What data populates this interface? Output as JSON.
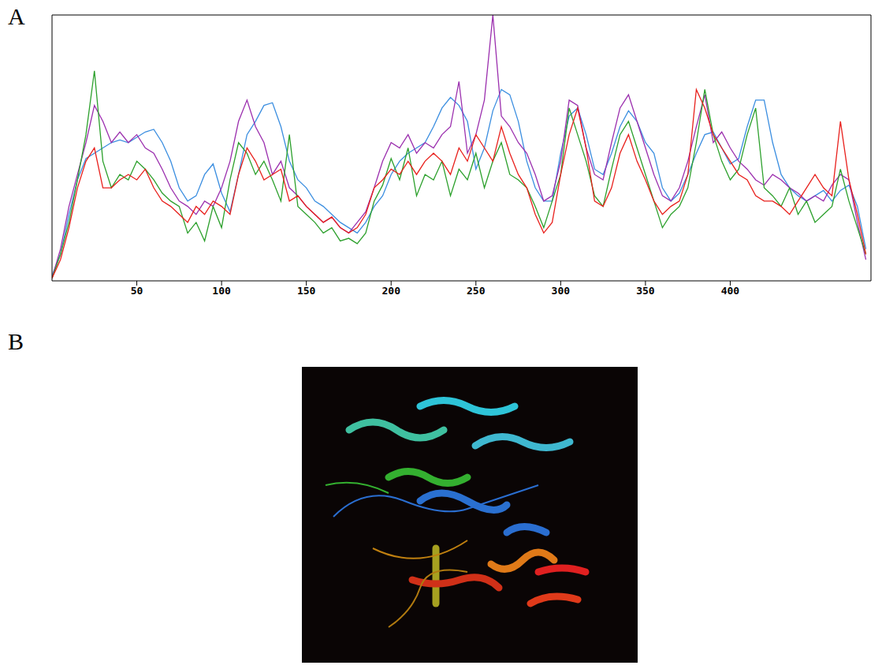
{
  "panel_labels": [
    "A",
    "B"
  ],
  "chart_data": {
    "type": "line",
    "x": [
      0,
      5,
      10,
      15,
      20,
      25,
      30,
      35,
      40,
      45,
      50,
      55,
      60,
      65,
      70,
      75,
      80,
      85,
      90,
      95,
      100,
      105,
      110,
      115,
      120,
      125,
      130,
      135,
      140,
      145,
      150,
      155,
      160,
      165,
      170,
      175,
      180,
      185,
      190,
      195,
      200,
      205,
      210,
      215,
      220,
      225,
      230,
      235,
      240,
      245,
      250,
      255,
      260,
      265,
      270,
      275,
      280,
      285,
      290,
      295,
      300,
      305,
      310,
      315,
      320,
      325,
      330,
      335,
      340,
      345,
      350,
      355,
      360,
      365,
      370,
      375,
      380,
      385,
      390,
      395,
      400,
      405,
      410,
      415,
      420,
      425,
      430,
      435,
      440,
      445,
      450,
      455,
      460,
      465,
      470,
      475,
      480
    ],
    "xlim": [
      0,
      483
    ],
    "xticks": [
      50,
      100,
      150,
      200,
      250,
      300,
      350,
      400
    ],
    "ylim": [
      0,
      100
    ],
    "tick_labels": "x",
    "series": [
      {
        "color": "#3b8ee0",
        "values": [
          2,
          10,
          25,
          38,
          46,
          48,
          50,
          52,
          53,
          52,
          54,
          56,
          57,
          52,
          45,
          35,
          30,
          32,
          40,
          44,
          33,
          26,
          40,
          55,
          60,
          66,
          67,
          58,
          45,
          38,
          35,
          30,
          28,
          25,
          22,
          20,
          18,
          22,
          28,
          32,
          40,
          45,
          48,
          50,
          52,
          58,
          65,
          69,
          66,
          60,
          42,
          50,
          64,
          72,
          70,
          60,
          45,
          35,
          30,
          30,
          48,
          62,
          65,
          55,
          42,
          40,
          48,
          58,
          64,
          60,
          52,
          48,
          35,
          30,
          33,
          40,
          48,
          55,
          56,
          50,
          44,
          46,
          58,
          68,
          68,
          52,
          40,
          35,
          32,
          30,
          32,
          34,
          30,
          34,
          36,
          28,
          12
        ]
      },
      {
        "color": "#9b2fae",
        "values": [
          1,
          12,
          28,
          40,
          52,
          66,
          60,
          52,
          56,
          52,
          55,
          50,
          48,
          42,
          35,
          30,
          28,
          25,
          30,
          28,
          35,
          45,
          60,
          68,
          58,
          52,
          40,
          45,
          35,
          32,
          28,
          25,
          22,
          24,
          20,
          18,
          22,
          26,
          35,
          45,
          52,
          50,
          55,
          48,
          52,
          50,
          55,
          58,
          75,
          48,
          55,
          68,
          100,
          62,
          58,
          52,
          48,
          40,
          30,
          32,
          45,
          68,
          66,
          50,
          40,
          38,
          52,
          65,
          70,
          60,
          50,
          40,
          32,
          30,
          35,
          45,
          58,
          70,
          52,
          56,
          50,
          45,
          42,
          38,
          36,
          40,
          38,
          35,
          33,
          30,
          32,
          30,
          36,
          40,
          38,
          22,
          8
        ]
      },
      {
        "color": "#2ca02c",
        "values": [
          1,
          10,
          22,
          38,
          55,
          79,
          45,
          35,
          40,
          38,
          45,
          42,
          38,
          33,
          30,
          28,
          18,
          22,
          15,
          28,
          20,
          38,
          52,
          48,
          40,
          45,
          38,
          30,
          55,
          28,
          25,
          22,
          18,
          20,
          15,
          16,
          14,
          18,
          30,
          36,
          46,
          38,
          50,
          32,
          40,
          38,
          45,
          32,
          42,
          38,
          48,
          35,
          45,
          52,
          40,
          38,
          35,
          28,
          20,
          30,
          40,
          65,
          55,
          45,
          32,
          28,
          42,
          55,
          60,
          50,
          40,
          30,
          20,
          25,
          28,
          35,
          52,
          72,
          55,
          45,
          38,
          42,
          55,
          65,
          35,
          32,
          28,
          35,
          25,
          30,
          22,
          25,
          28,
          42,
          30,
          20,
          10
        ]
      },
      {
        "color": "#e8201c",
        "values": [
          1,
          8,
          20,
          35,
          45,
          50,
          35,
          35,
          38,
          40,
          38,
          42,
          35,
          30,
          28,
          25,
          22,
          28,
          25,
          30,
          28,
          25,
          40,
          50,
          45,
          38,
          40,
          42,
          30,
          32,
          28,
          25,
          22,
          24,
          20,
          18,
          20,
          25,
          35,
          38,
          42,
          40,
          45,
          40,
          45,
          48,
          45,
          40,
          50,
          45,
          55,
          50,
          45,
          58,
          48,
          40,
          35,
          25,
          18,
          22,
          40,
          55,
          65,
          50,
          30,
          28,
          35,
          48,
          55,
          45,
          38,
          30,
          25,
          28,
          30,
          40,
          72,
          65,
          55,
          50,
          45,
          40,
          38,
          32,
          30,
          30,
          28,
          25,
          30,
          35,
          40,
          35,
          32,
          60,
          38,
          25,
          10
        ]
      }
    ]
  }
}
